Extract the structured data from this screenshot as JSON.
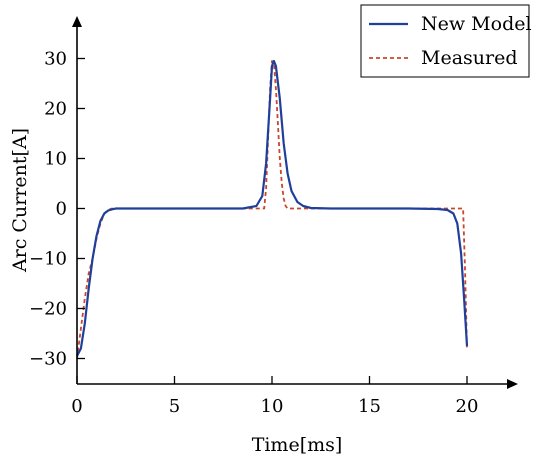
{
  "chart_data": {
    "type": "line",
    "title": "",
    "xlabel": "Time[ms]",
    "ylabel": "Arc Current[A]",
    "xlim": [
      0,
      22
    ],
    "ylim": [
      -35,
      35
    ],
    "xticks": [
      0,
      5,
      10,
      15,
      20
    ],
    "yticks": [
      -30,
      -20,
      -10,
      0,
      10,
      20,
      30
    ],
    "xtick_labels": [
      "0",
      "5",
      "10",
      "15",
      "20"
    ],
    "ytick_labels": [
      "−30",
      "−20",
      "−10",
      "0",
      "10",
      "20",
      "30"
    ],
    "grid": false,
    "legend": {
      "position": "top-right"
    },
    "series": [
      {
        "name": "New Model",
        "color": "#1f3f9a",
        "style": "solid",
        "x": [
          0.0,
          0.2,
          0.4,
          0.6,
          0.8,
          1.0,
          1.2,
          1.4,
          1.6,
          1.8,
          2.0,
          3.0,
          5.0,
          7.0,
          8.5,
          9.2,
          9.5,
          9.7,
          9.9,
          10.0,
          10.1,
          10.2,
          10.4,
          10.6,
          10.8,
          11.0,
          11.3,
          11.6,
          12.0,
          13.0,
          15.0,
          17.0,
          18.5,
          19.0,
          19.3,
          19.5,
          19.7,
          19.85,
          20.0
        ],
        "y": [
          -29.5,
          -28.0,
          -23.0,
          -16.0,
          -10.0,
          -5.5,
          -2.5,
          -1.0,
          -0.4,
          -0.15,
          0,
          0,
          0,
          0,
          0,
          0.5,
          2.5,
          9.0,
          22.0,
          28.5,
          29.5,
          28.5,
          22.0,
          13.0,
          7.0,
          3.5,
          1.3,
          0.5,
          0.1,
          0,
          0,
          0,
          -0.1,
          -0.3,
          -1.0,
          -3.0,
          -9.0,
          -18.0,
          -27.5
        ]
      },
      {
        "name": "Measured",
        "color": "#c8472b",
        "style": "dashed",
        "x": [
          0.0,
          0.2,
          0.4,
          0.6,
          0.8,
          1.0,
          1.2,
          1.4,
          1.6,
          1.8,
          2.0,
          3.0,
          5.0,
          7.0,
          8.5,
          9.5,
          9.6,
          9.7,
          9.8,
          9.9,
          10.0,
          10.1,
          10.2,
          10.3,
          10.4,
          10.5,
          10.6,
          10.7,
          10.8,
          10.9,
          11.0,
          11.5,
          13.0,
          15.0,
          17.0,
          18.5,
          19.5,
          19.8,
          19.9,
          20.0
        ],
        "y": [
          -30.0,
          -24.0,
          -18.0,
          -13.0,
          -10.0,
          -6.0,
          -3.0,
          -1.0,
          -0.3,
          0,
          0,
          0,
          0,
          0,
          0,
          0,
          0,
          4.0,
          14.0,
          24.0,
          29.5,
          29.0,
          24.0,
          17.0,
          10.0,
          5.0,
          2.0,
          0.5,
          0,
          0,
          0,
          0,
          0,
          0,
          0,
          0,
          0,
          0,
          -12.0,
          -28.0
        ]
      }
    ]
  }
}
